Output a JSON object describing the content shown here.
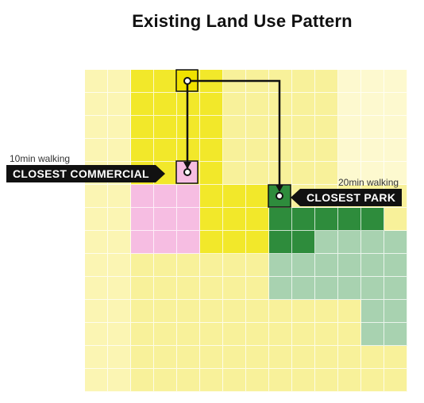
{
  "title": "Existing Land Use Pattern",
  "legend_colors": {
    "residential": "#f8f19a",
    "residential_light": "#fbf5b3",
    "residential_faint": "#fdf9cf",
    "commercial_yellow": "#f2e82a",
    "commercial_pink": "#f6bde2",
    "park_dark": "#2e8c3c",
    "park_light": "#a8d2b0"
  },
  "grid_map": [
    "AABBBBAAAAACCC",
    "AABBBBAAAAACCC",
    "AABBBBAAAAACCC",
    "AABBBBAAAAACCC",
    "AABBBBAAAAACCC",
    "AAPPPBBBBAAAAA",
    "AAPPPBBBGGGGGA",
    "AAPPPBBBGGLLLL",
    "AAAAAAAALLLLLL",
    "AAAAAAAALLLLLL",
    "AAAAAAAAAAAALL",
    "AAAAAAAAAAAALL",
    "AAAAAAAAAAAAAA",
    "AAAAAAAAAAAAAA"
  ],
  "labels": {
    "commercial_time": "10min walking",
    "commercial_name": "CLOSEST COMMERCIAL",
    "park_time": "20min walking",
    "park_name": "CLOSEST PARK"
  }
}
